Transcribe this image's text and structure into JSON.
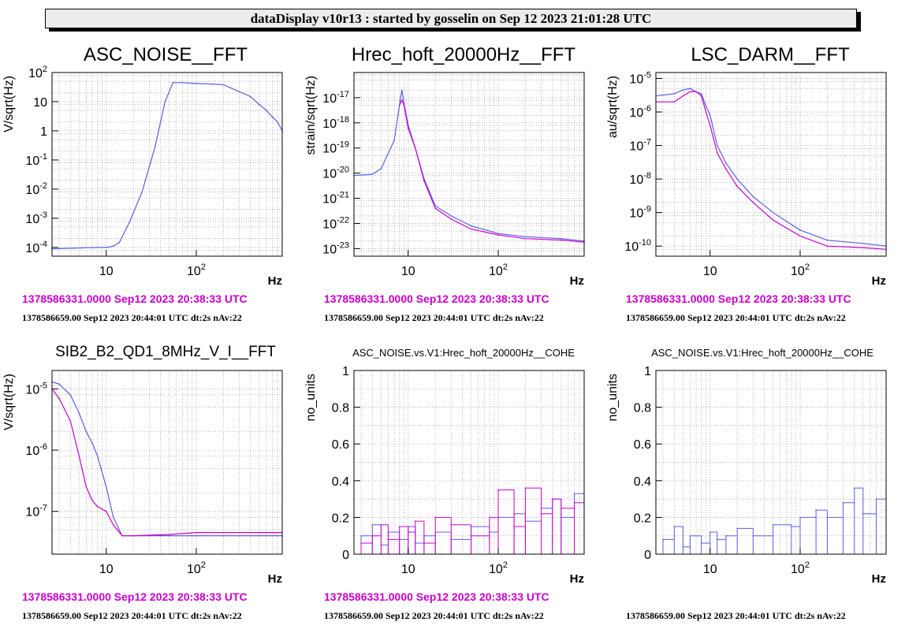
{
  "banner": "dataDisplay v10r13 : started by gosselin on Sep 12 2023 21:01:28 UTC",
  "colors": {
    "blue": "#5c5ce6",
    "magenta": "#cc00cc",
    "grid": "#9a9a9a"
  },
  "chart_data": [
    {
      "type": "line",
      "title": "ASC_NOISE__FFT",
      "ylabel": "V/sqrt(Hz)",
      "xlabel": "Hz",
      "xscale": "log",
      "yscale": "log",
      "xlim": [
        2.5,
        900
      ],
      "ylim": [
        5e-05,
        100
      ],
      "xticks": [
        {
          "v": 10,
          "label": "10"
        },
        {
          "v": 100,
          "label": "10^2"
        }
      ],
      "yticks": [
        {
          "v": 0.0001,
          "label": "10^-4"
        },
        {
          "v": 0.001,
          "label": "10^-3"
        },
        {
          "v": 0.01,
          "label": "10^-2"
        },
        {
          "v": 0.1,
          "label": "10^-1"
        },
        {
          "v": 1,
          "label": "1"
        },
        {
          "v": 10,
          "label": "10"
        },
        {
          "v": 100,
          "label": "10^2"
        }
      ],
      "grid": true,
      "ref_time": "1378586331.0000 Sep12 2023 20:38:33 UTC",
      "info": "1378586659.00 Sep12 2023 20:44:01 UTC dt:2s nAv:22",
      "series": [
        {
          "color": "#5c5ce6",
          "x": [
            2.5,
            8,
            10,
            12,
            14,
            18,
            25,
            35,
            45,
            55,
            70,
            100,
            150,
            200,
            300,
            400,
            500,
            600,
            700,
            800,
            900
          ],
          "y": [
            9e-05,
            0.0001,
            0.0001,
            0.00011,
            0.00015,
            0.0007,
            0.008,
            0.3,
            10,
            45,
            45,
            42,
            40,
            38,
            22,
            15,
            8,
            5,
            3,
            2,
            1
          ]
        }
      ]
    },
    {
      "type": "line",
      "title": "Hrec_hoft_20000Hz__FFT",
      "ylabel": "strain/sqrt(Hz)",
      "xlabel": "Hz",
      "xscale": "log",
      "yscale": "log",
      "xlim": [
        2.5,
        900
      ],
      "ylim": [
        5e-24,
        1e-16
      ],
      "xticks": [
        {
          "v": 10,
          "label": "10"
        },
        {
          "v": 100,
          "label": "10^2"
        }
      ],
      "yticks": [
        {
          "v": 1e-23,
          "label": "10^-23"
        },
        {
          "v": 1e-22,
          "label": "10^-22"
        },
        {
          "v": 1e-21,
          "label": "10^-21"
        },
        {
          "v": 1e-20,
          "label": "10^-20"
        },
        {
          "v": 1e-19,
          "label": "10^-19"
        },
        {
          "v": 1e-18,
          "label": "10^-18"
        },
        {
          "v": 1e-17,
          "label": "10^-17"
        }
      ],
      "grid": true,
      "ref_time": "1378586331.0000 Sep12 2023 20:38:33 UTC",
      "info": "1378586659.00 Sep12 2023 20:44:01 UTC dt:2s nAv:22",
      "series": [
        {
          "color": "#5c5ce6",
          "x": [
            2.5,
            4,
            5,
            6,
            7,
            8,
            8.5,
            9,
            10,
            12,
            15,
            20,
            30,
            50,
            100,
            200,
            500,
            900
          ],
          "y": [
            8e-21,
            9e-21,
            1.5e-20,
            6e-20,
            2e-19,
            5e-18,
            2e-17,
            6e-18,
            8e-19,
            1e-19,
            6e-21,
            5e-22,
            2e-22,
            8e-23,
            4e-23,
            3e-23,
            2.5e-23,
            2e-23
          ]
        },
        {
          "color": "#cc00cc",
          "x": [
            8,
            8.5,
            9,
            10,
            12,
            15,
            20,
            30,
            50,
            100,
            200,
            500,
            900
          ],
          "y": [
            5e-18,
            8e-18,
            5e-18,
            6e-19,
            1e-19,
            5e-21,
            4e-22,
            1.5e-22,
            6e-23,
            3.5e-23,
            2.5e-23,
            2.2e-23,
            1.8e-23
          ]
        }
      ]
    },
    {
      "type": "line",
      "title": "LSC_DARM__FFT",
      "ylabel": "au/sqrt(Hz)",
      "xlabel": "Hz",
      "xscale": "log",
      "yscale": "log",
      "xlim": [
        2.5,
        900
      ],
      "ylim": [
        5e-11,
        1.5e-05
      ],
      "xticks": [
        {
          "v": 10,
          "label": "10"
        },
        {
          "v": 100,
          "label": "10^2"
        }
      ],
      "yticks": [
        {
          "v": 1e-10,
          "label": "10^-10"
        },
        {
          "v": 1e-09,
          "label": "10^-9"
        },
        {
          "v": 1e-08,
          "label": "10^-8"
        },
        {
          "v": 1e-07,
          "label": "10^-7"
        },
        {
          "v": 1e-06,
          "label": "10^-6"
        },
        {
          "v": 1e-05,
          "label": "10^-5"
        }
      ],
      "grid": true,
      "ref_time": "1378586331.0000 Sep12 2023 20:38:33 UTC",
      "info": "1378586659.00 Sep12 2023 20:44:01 UTC dt:2s nAv:22",
      "series": [
        {
          "color": "#5c5ce6",
          "x": [
            2.5,
            4,
            5,
            6,
            7,
            8,
            9,
            10,
            12,
            15,
            20,
            30,
            50,
            100,
            200,
            500,
            900
          ],
          "y": [
            3e-06,
            3.5e-06,
            4.5e-06,
            5e-06,
            4e-06,
            3.5e-06,
            1.5e-06,
            8e-07,
            1e-07,
            3e-08,
            1e-08,
            3e-09,
            1e-09,
            3e-10,
            1.5e-10,
            1.2e-10,
            1e-10
          ]
        },
        {
          "color": "#cc00cc",
          "x": [
            2.5,
            4,
            5,
            6,
            7,
            8,
            9,
            10,
            12,
            15,
            20,
            30,
            50,
            100,
            200,
            500,
            900
          ],
          "y": [
            2e-06,
            2e-06,
            3e-06,
            4e-06,
            4e-06,
            3e-06,
            1e-06,
            4e-07,
            6e-08,
            2e-08,
            6e-09,
            2e-09,
            6e-10,
            2e-10,
            1e-10,
            9e-11,
            8e-11
          ]
        }
      ]
    },
    {
      "type": "line",
      "title": "SIB2_B2_QD1_8MHz_V_I__FFT",
      "ylabel": "V/sqrt(Hz)",
      "xlabel": "Hz",
      "xscale": "log",
      "yscale": "log",
      "xlim": [
        2.5,
        900
      ],
      "ylim": [
        2e-08,
        2e-05
      ],
      "xticks": [
        {
          "v": 10,
          "label": "10"
        },
        {
          "v": 100,
          "label": "10^2"
        }
      ],
      "yticks": [
        {
          "v": 1e-07,
          "label": "10^-7"
        },
        {
          "v": 1e-06,
          "label": "10^-6"
        },
        {
          "v": 1e-05,
          "label": "10^-5"
        }
      ],
      "grid": true,
      "ref_time": "1378586331.0000 Sep12 2023 20:38:33 UTC",
      "info": "1378586659.00 Sep12 2023 20:44:01 UTC dt:2s nAv:22",
      "series": [
        {
          "color": "#5c5ce6",
          "x": [
            2.5,
            3,
            4,
            5,
            6,
            7,
            8,
            10,
            12,
            15,
            20,
            50,
            100,
            500,
            900
          ],
          "y": [
            1.3e-05,
            1.2e-05,
            8e-06,
            4e-06,
            2e-06,
            1.3e-06,
            8e-07,
            2.5e-07,
            8e-08,
            4e-08,
            4e-08,
            4e-08,
            4e-08,
            4e-08,
            4e-08
          ]
        },
        {
          "color": "#cc00cc",
          "x": [
            2.5,
            3,
            4,
            5,
            6,
            7,
            8,
            10,
            12,
            15,
            20,
            50,
            100,
            500,
            900
          ],
          "y": [
            1e-05,
            7e-06,
            3e-06,
            8e-07,
            2.5e-07,
            1.5e-07,
            1.2e-07,
            1e-07,
            6e-08,
            4e-08,
            4e-08,
            4.2e-08,
            4.5e-08,
            4.5e-08,
            4.5e-08
          ]
        }
      ]
    },
    {
      "type": "bar",
      "title": "ASC_NOISE.vs.V1:Hrec_hoft_20000Hz__COHE",
      "ylabel": "no_units",
      "xlabel": "Hz",
      "xscale": "log",
      "yscale": "linear",
      "xlim": [
        2.5,
        900
      ],
      "ylim": [
        0,
        1
      ],
      "xticks": [
        {
          "v": 10,
          "label": "10"
        },
        {
          "v": 100,
          "label": "10^2"
        }
      ],
      "yticks": [
        {
          "v": 0,
          "label": "0"
        },
        {
          "v": 0.2,
          "label": "0.2"
        },
        {
          "v": 0.4,
          "label": "0.4"
        },
        {
          "v": 0.6,
          "label": "0.6"
        },
        {
          "v": 0.8,
          "label": "0.8"
        },
        {
          "v": 1,
          "label": "1"
        }
      ],
      "grid": true,
      "ref_time": "1378586331.0000 Sep12 2023 20:38:33 UTC",
      "info": "1378586659.00 Sep12 2023 20:44:01 UTC dt:2s nAv:22",
      "series": [
        {
          "color": "#5c5ce6",
          "x": [
            3,
            4,
            5,
            6,
            8,
            10,
            12,
            15,
            20,
            30,
            50,
            80,
            100,
            150,
            200,
            300,
            400,
            500,
            700,
            900
          ],
          "y": [
            0.1,
            0.16,
            0.05,
            0.12,
            0.08,
            0.15,
            0.06,
            0.1,
            0.12,
            0.08,
            0.15,
            0.12,
            0.2,
            0.22,
            0.18,
            0.25,
            0.3,
            0.2,
            0.33,
            0.25
          ]
        },
        {
          "color": "#cc00cc",
          "x": [
            3,
            4,
            5,
            6,
            8,
            10,
            12,
            15,
            20,
            30,
            50,
            80,
            100,
            150,
            200,
            300,
            400,
            500,
            700,
            900
          ],
          "y": [
            0.06,
            0.1,
            0.16,
            0.08,
            0.15,
            0.12,
            0.18,
            0.06,
            0.2,
            0.16,
            0.1,
            0.2,
            0.35,
            0.15,
            0.36,
            0.22,
            0.3,
            0.25,
            0.28,
            0.2
          ]
        }
      ]
    },
    {
      "type": "bar",
      "title": "ASC_NOISE.vs.V1:Hrec_hoft_20000Hz__COHE",
      "ylabel": "no_units",
      "xlabel": "Hz",
      "xscale": "log",
      "yscale": "linear",
      "xlim": [
        2.5,
        900
      ],
      "ylim": [
        0,
        1
      ],
      "xticks": [
        {
          "v": 10,
          "label": "10"
        },
        {
          "v": 100,
          "label": "10^2"
        }
      ],
      "yticks": [
        {
          "v": 0,
          "label": "0"
        },
        {
          "v": 0.2,
          "label": "0.2"
        },
        {
          "v": 0.4,
          "label": "0.4"
        },
        {
          "v": 0.6,
          "label": "0.6"
        },
        {
          "v": 0.8,
          "label": "0.8"
        },
        {
          "v": 1,
          "label": "1"
        }
      ],
      "grid": true,
      "ref_time": "",
      "info": "1378586659.00 Sep12 2023 20:44:01 UTC dt:2s nAv:22",
      "series": [
        {
          "color": "#5c5ce6",
          "x": [
            3,
            4,
            5,
            6,
            8,
            10,
            12,
            15,
            20,
            30,
            50,
            80,
            100,
            150,
            200,
            300,
            400,
            500,
            700,
            900
          ],
          "y": [
            0.08,
            0.15,
            0.04,
            0.1,
            0.06,
            0.12,
            0.08,
            0.1,
            0.14,
            0.1,
            0.16,
            0.15,
            0.2,
            0.24,
            0.2,
            0.28,
            0.36,
            0.22,
            0.3,
            0.24
          ]
        }
      ]
    }
  ]
}
